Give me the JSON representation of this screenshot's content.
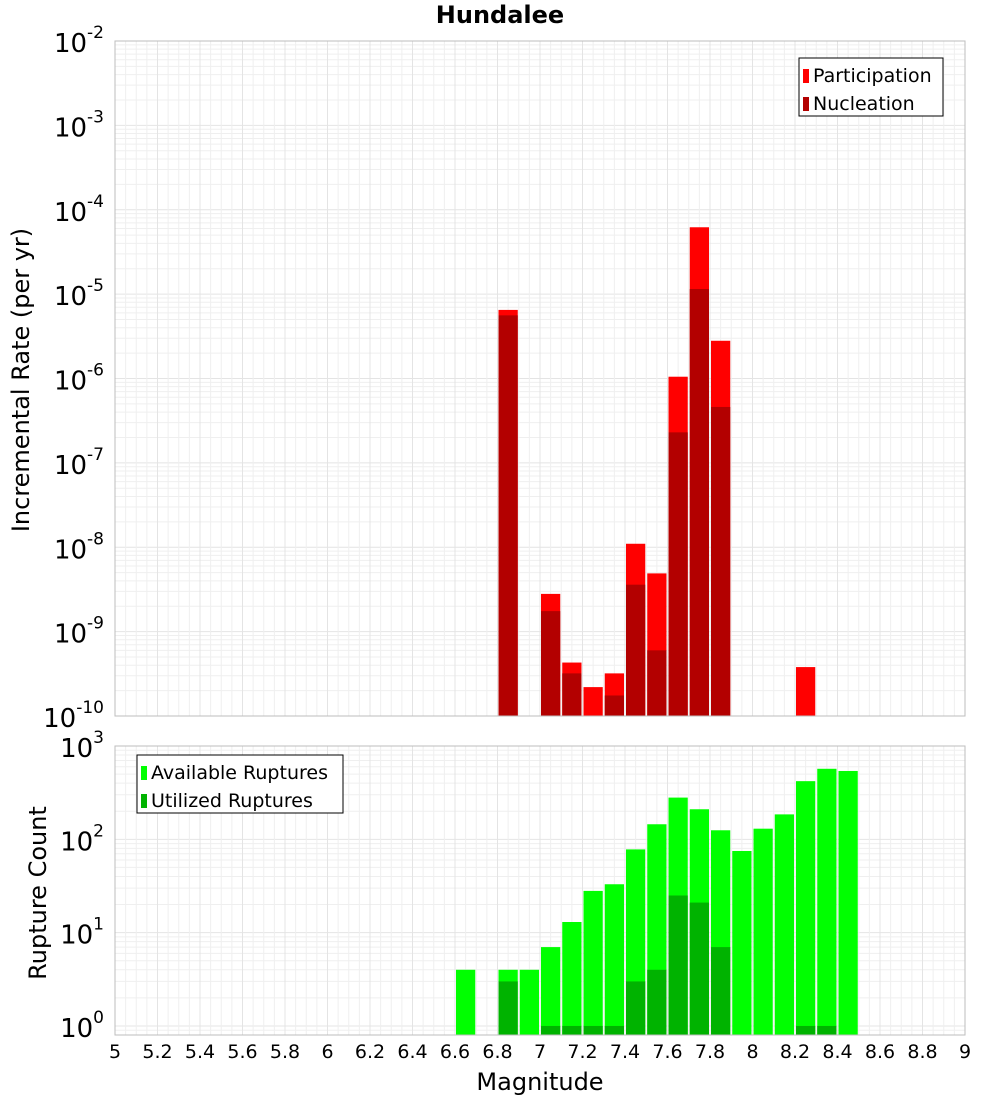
{
  "chart_data": [
    {
      "type": "bar",
      "title": "Hundalee",
      "xlabel": "",
      "ylabel": "Incremental Rate (per yr)",
      "yscale": "log",
      "xlim": [
        5,
        9
      ],
      "ylim": [
        1e-10,
        0.01
      ],
      "ytick_exponents": [
        "-10",
        "-9",
        "-8",
        "-7",
        "-6",
        "-5",
        "-4",
        "-3",
        "-2"
      ],
      "legend_position": "top-right",
      "series": [
        {
          "name": "Participation",
          "color": "#ff0000",
          "points": [
            {
              "x": 6.85,
              "y": 6.5e-06
            },
            {
              "x": 7.05,
              "y": 2.8e-09
            },
            {
              "x": 7.15,
              "y": 4.3e-10
            },
            {
              "x": 7.25,
              "y": 2.2e-10
            },
            {
              "x": 7.35,
              "y": 3.2e-10
            },
            {
              "x": 7.45,
              "y": 1.1e-08
            },
            {
              "x": 7.55,
              "y": 4.9e-09
            },
            {
              "x": 7.65,
              "y": 1.05e-06
            },
            {
              "x": 7.75,
              "y": 6.2e-05
            },
            {
              "x": 7.85,
              "y": 2.8e-06
            },
            {
              "x": 8.25,
              "y": 3.8e-10
            }
          ]
        },
        {
          "name": "Nucleation",
          "color": "#b30000",
          "points": [
            {
              "x": 6.85,
              "y": 5.6e-06
            },
            {
              "x": 7.05,
              "y": 1.75e-09
            },
            {
              "x": 7.15,
              "y": 3.2e-10
            },
            {
              "x": 7.35,
              "y": 1.75e-10
            },
            {
              "x": 7.45,
              "y": 3.6e-09
            },
            {
              "x": 7.55,
              "y": 6e-10
            },
            {
              "x": 7.65,
              "y": 2.3e-07
            },
            {
              "x": 7.75,
              "y": 1.15e-05
            },
            {
              "x": 7.85,
              "y": 4.6e-07
            }
          ]
        }
      ]
    },
    {
      "type": "bar",
      "title": "",
      "xlabel": "Magnitude",
      "ylabel": "Rupture Count",
      "yscale": "log",
      "xlim": [
        5,
        9
      ],
      "ylim": [
        0.8,
        1000
      ],
      "x_ticks": [
        "5",
        "5.2",
        "5.4",
        "5.6",
        "5.8",
        "6",
        "6.2",
        "6.4",
        "6.6",
        "6.8",
        "7",
        "7.2",
        "7.4",
        "7.6",
        "7.8",
        "8",
        "8.2",
        "8.4",
        "8.6",
        "8.8",
        "9"
      ],
      "ytick_exponents": [
        "0",
        "1",
        "2",
        "3"
      ],
      "legend_position": "top-left",
      "series": [
        {
          "name": "Available Ruptures",
          "color": "#00ff00",
          "points": [
            {
              "x": 6.65,
              "y": 4
            },
            {
              "x": 6.85,
              "y": 4
            },
            {
              "x": 6.95,
              "y": 4
            },
            {
              "x": 7.05,
              "y": 7
            },
            {
              "x": 7.15,
              "y": 13
            },
            {
              "x": 7.25,
              "y": 28
            },
            {
              "x": 7.35,
              "y": 33
            },
            {
              "x": 7.45,
              "y": 78
            },
            {
              "x": 7.55,
              "y": 145
            },
            {
              "x": 7.65,
              "y": 280
            },
            {
              "x": 7.75,
              "y": 210
            },
            {
              "x": 7.85,
              "y": 125
            },
            {
              "x": 7.95,
              "y": 75
            },
            {
              "x": 8.05,
              "y": 130
            },
            {
              "x": 8.15,
              "y": 185
            },
            {
              "x": 8.25,
              "y": 420
            },
            {
              "x": 8.35,
              "y": 570
            },
            {
              "x": 8.45,
              "y": 540
            }
          ]
        },
        {
          "name": "Utilized Ruptures",
          "color": "#00b300",
          "points": [
            {
              "x": 6.85,
              "y": 3
            },
            {
              "x": 7.05,
              "y": 1
            },
            {
              "x": 7.15,
              "y": 1
            },
            {
              "x": 7.25,
              "y": 1
            },
            {
              "x": 7.35,
              "y": 1
            },
            {
              "x": 7.45,
              "y": 3
            },
            {
              "x": 7.55,
              "y": 4
            },
            {
              "x": 7.65,
              "y": 25
            },
            {
              "x": 7.75,
              "y": 21
            },
            {
              "x": 7.85,
              "y": 7
            },
            {
              "x": 8.25,
              "y": 1
            },
            {
              "x": 8.35,
              "y": 1
            }
          ]
        }
      ]
    }
  ]
}
